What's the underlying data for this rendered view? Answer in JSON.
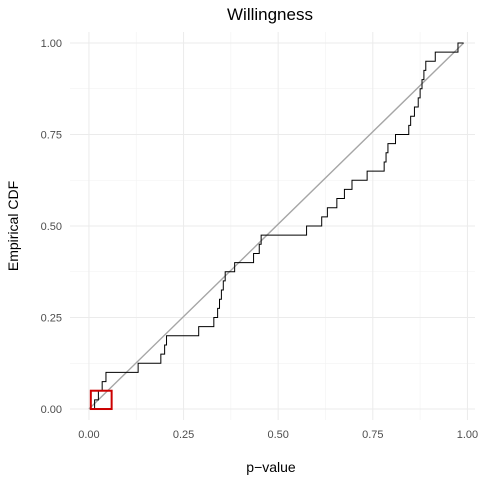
{
  "chart_data": {
    "type": "line",
    "title": "Willingness",
    "xlabel": "p−value",
    "ylabel": "Empirical CDF",
    "xlim": [
      -0.05,
      1.02
    ],
    "ylim": [
      -0.03,
      1.03
    ],
    "x_ticks": [
      0.0,
      0.25,
      0.5,
      0.75,
      1.0
    ],
    "x_tick_labels": [
      "0.00",
      "0.25",
      "0.50",
      "0.75",
      "1.00"
    ],
    "y_ticks": [
      0.0,
      0.25,
      0.5,
      0.75,
      1.0
    ],
    "y_tick_labels": [
      "0.00",
      "0.25",
      "0.50",
      "0.75",
      "1.00"
    ],
    "grid": true,
    "series": [
      {
        "kind": "step",
        "color": "#000000",
        "x": [
          0.015,
          0.025,
          0.035,
          0.045,
          0.07,
          0.13,
          0.19,
          0.2,
          0.205,
          0.21,
          0.215,
          0.22,
          0.225,
          0.23,
          0.245,
          0.25,
          0.255,
          0.26,
          0.27,
          0.285,
          0.29,
          0.3,
          0.315,
          0.33,
          0.34,
          0.345,
          0.35,
          0.355,
          0.36,
          0.37,
          0.375,
          0.385,
          0.395,
          0.42,
          0.435,
          0.44,
          0.445,
          0.45,
          0.455,
          0.46,
          0.465,
          0.47,
          0.485,
          0.5,
          0.505,
          0.51,
          0.52,
          0.53,
          0.545,
          0.55,
          0.56,
          0.575,
          0.585,
          0.59,
          0.6,
          0.605,
          0.615,
          0.62,
          0.63,
          0.64,
          0.645,
          0.65,
          0.655,
          0.67,
          0.675,
          0.68,
          0.685,
          0.69,
          0.695,
          0.705,
          0.715,
          0.72,
          0.735,
          0.745,
          0.765,
          0.77,
          0.78,
          0.785,
          0.79,
          0.8,
          0.81,
          0.815,
          0.82,
          0.835,
          0.845,
          0.85,
          0.86,
          0.87,
          0.875,
          0.88,
          0.885,
          0.89,
          0.895,
          0.905,
          0.91,
          0.915,
          0.92,
          0.93,
          0.935,
          0.94,
          0.945,
          0.955,
          0.96,
          0.965,
          0.97,
          0.975,
          0.98,
          0.985,
          0.99
        ],
        "y": [
          0.025,
          0.05,
          0.075,
          0.1,
          0.1,
          0.125,
          0.15,
          0.175,
          0.2,
          0.2,
          0.2,
          0.2,
          0.2,
          0.2,
          0.2,
          0.2,
          0.2,
          0.2,
          0.2,
          0.2,
          0.225,
          0.225,
          0.225,
          0.25,
          0.275,
          0.3,
          0.325,
          0.35,
          0.375,
          0.375,
          0.375,
          0.4,
          0.4,
          0.4,
          0.425,
          0.425,
          0.425,
          0.45,
          0.475,
          0.475,
          0.475,
          0.475,
          0.475,
          0.475,
          0.475,
          0.475,
          0.475,
          0.475,
          0.475,
          0.475,
          0.475,
          0.5,
          0.5,
          0.5,
          0.5,
          0.5,
          0.525,
          0.525,
          0.55,
          0.55,
          0.55,
          0.55,
          0.575,
          0.575,
          0.6,
          0.6,
          0.6,
          0.6,
          0.625,
          0.625,
          0.625,
          0.625,
          0.65,
          0.65,
          0.65,
          0.65,
          0.675,
          0.7,
          0.725,
          0.725,
          0.75,
          0.75,
          0.75,
          0.75,
          0.775,
          0.8,
          0.825,
          0.85,
          0.875,
          0.9,
          0.925,
          0.95,
          0.95,
          0.95,
          0.95,
          0.975,
          0.975,
          0.975,
          0.975,
          0.975,
          0.975,
          0.975,
          0.975,
          0.975,
          0.975,
          1.0,
          1.0,
          1.0,
          1.0
        ]
      },
      {
        "kind": "reference",
        "color": "#a6a6a6",
        "x": [
          0.0,
          0.99
        ],
        "y": [
          0.0,
          1.0
        ]
      }
    ],
    "annotations": [
      {
        "type": "rectangle",
        "color": "#cc0000",
        "x": [
          0.005,
          0.06
        ],
        "y": [
          0.0,
          0.05
        ]
      }
    ]
  }
}
